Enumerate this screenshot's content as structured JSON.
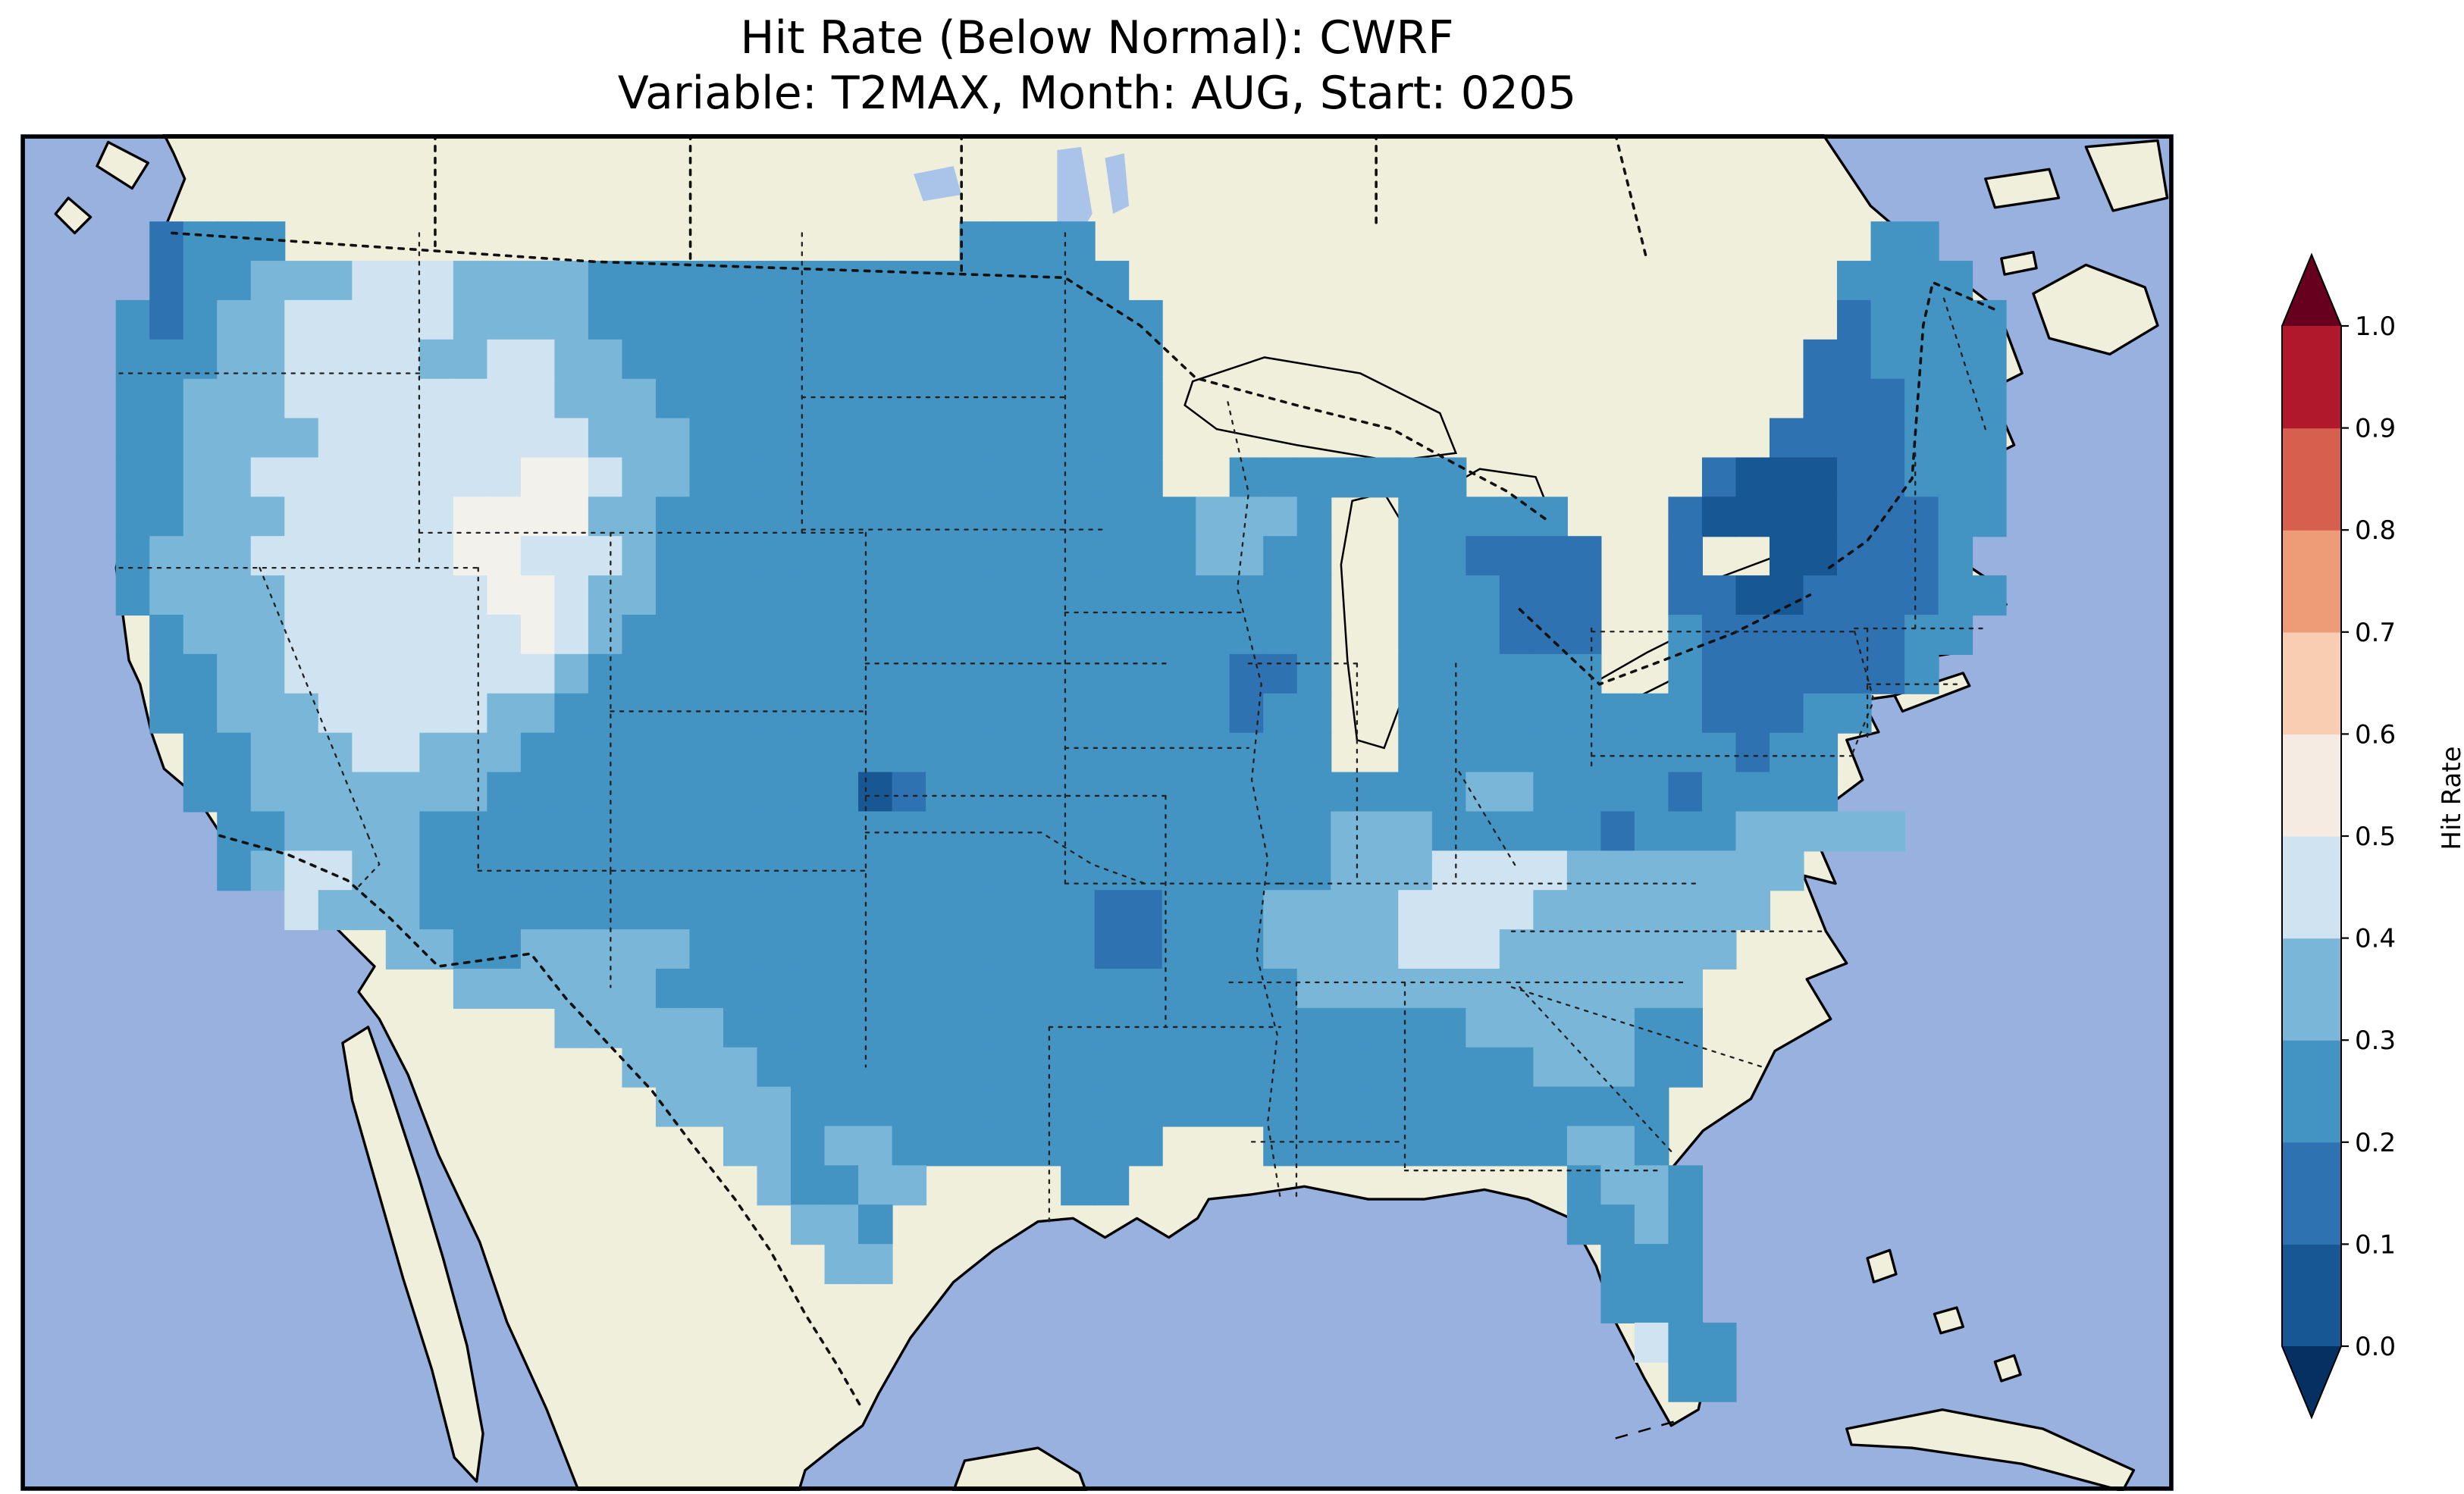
{
  "figure": {
    "title_line1": "Hit Rate (Below Normal): CWRF",
    "title_line2": "Variable: T2MAX, Month: AUG, Start: 0205"
  },
  "colorbar": {
    "label": "Hit Rate",
    "tick_labels": [
      "0.0",
      "0.1",
      "0.2",
      "0.3",
      "0.4",
      "0.5",
      "0.6",
      "0.7",
      "0.8",
      "0.9",
      "1.0"
    ],
    "segment_colors_bottom_to_top": [
      "#175793",
      "#2e72b2",
      "#4393c3",
      "#7ab6d8",
      "#cfe4f0",
      "#f5ebe2",
      "#f9cdb2",
      "#ee9c77",
      "#d6604d",
      "#b2182b"
    ],
    "under_arrow_color": "#053061",
    "over_arrow_color": "#67001f"
  },
  "map": {
    "ocean_color": "#98b1df",
    "land_color": "#efefdb",
    "lake_color": "#aac3e8",
    "palette": {
      "1": "#175793",
      "2": "#2e72b2",
      "3": "#4393c3",
      "4": "#7ab6d8",
      "5": "#cfe4f0",
      "6": "#f3f1ec"
    }
  },
  "chart_data": {
    "type": "heatmap",
    "title": "Hit Rate (Below Normal): CWRF",
    "subtitle": "Variable: T2MAX, Month: AUG, Start: 0205",
    "metric": "Hit Rate (Below Normal)",
    "model": "CWRF",
    "variable": "T2MAX",
    "month": "AUG",
    "start": "0205",
    "region": "Conterminous United States",
    "colorbar_label": "Hit Rate",
    "colorbar_ticks": [
      0.0,
      0.1,
      0.2,
      0.3,
      0.4,
      0.5,
      0.6,
      0.7,
      0.8,
      0.9,
      1.0
    ],
    "colorbar_range": [
      0.0,
      1.0
    ],
    "displayed_value_range": [
      0.0,
      0.6
    ],
    "legend_position": "right",
    "grid": {
      "cols": 56,
      "rows": 30,
      "encoding": "Each character is one map grid cell, west-to-east per row, north-to-south rows. '.' = outside US (no data). Bins: 1 = 0.0-0.1, 2 = 0.1-0.2, 3 = 0.2-0.3, 4 = 0.3-0.4, 5 = 0.4-0.5, 6 = 0.5-0.6",
      "rows_data": [
        ".2333....................3333.......................33..",
        ".23344455544443333333333333333.....................3333.",
        "3234455555444433333333333333333....................23333",
        "3334455554455443333333333333333...................223333",
        "3344455555555444333333333333333...................222333",
        "3344445555555544433333333333333..................2222333",
        "3344555555556654433333333333333..3333333.......211122333",
        "334445555566664433333333333333334443..33333...2111122233",
        "344455555566555433333333333333334433..332222..2..112223.",
        "344445555556654433333333333333333333..333222..2211222233",
        ".34445555555654333333333333333333333..333222..322222233.",
        ".33445555555543333333333333333333223..333333..32222223..",
        ".33444555554433333333333333333333233..33333333322233....",
        "..3344455444333333333333333333333333..3333333333233.....",
        "..3344444443333333333312333333333333333344333323333.....",
        "...33444433333333333333333333333333344433333233344444....",
        "...34554433333333333333333333333333344455554444444......",
        ".....54443333333333333333333322333444455554444444.......",
        "........4433444443333333333332233344445554444444........",
        "..........4444443333333333333333333444444444444.........",
        ".............4444433333333333333333333334444433..........",
        "...............44443333333333333333333333344433..........",
        "................444433333333333333333333333333..........",
        "..................4434433333333...333333333443..........",
        "...................43344....33.............3443.........",
        "....................443....................3343.........",
        ".....................44.....................333.........",
        "............................................333.........",
        ".............................................533........",
        "..............................................33........"
      ]
    }
  }
}
